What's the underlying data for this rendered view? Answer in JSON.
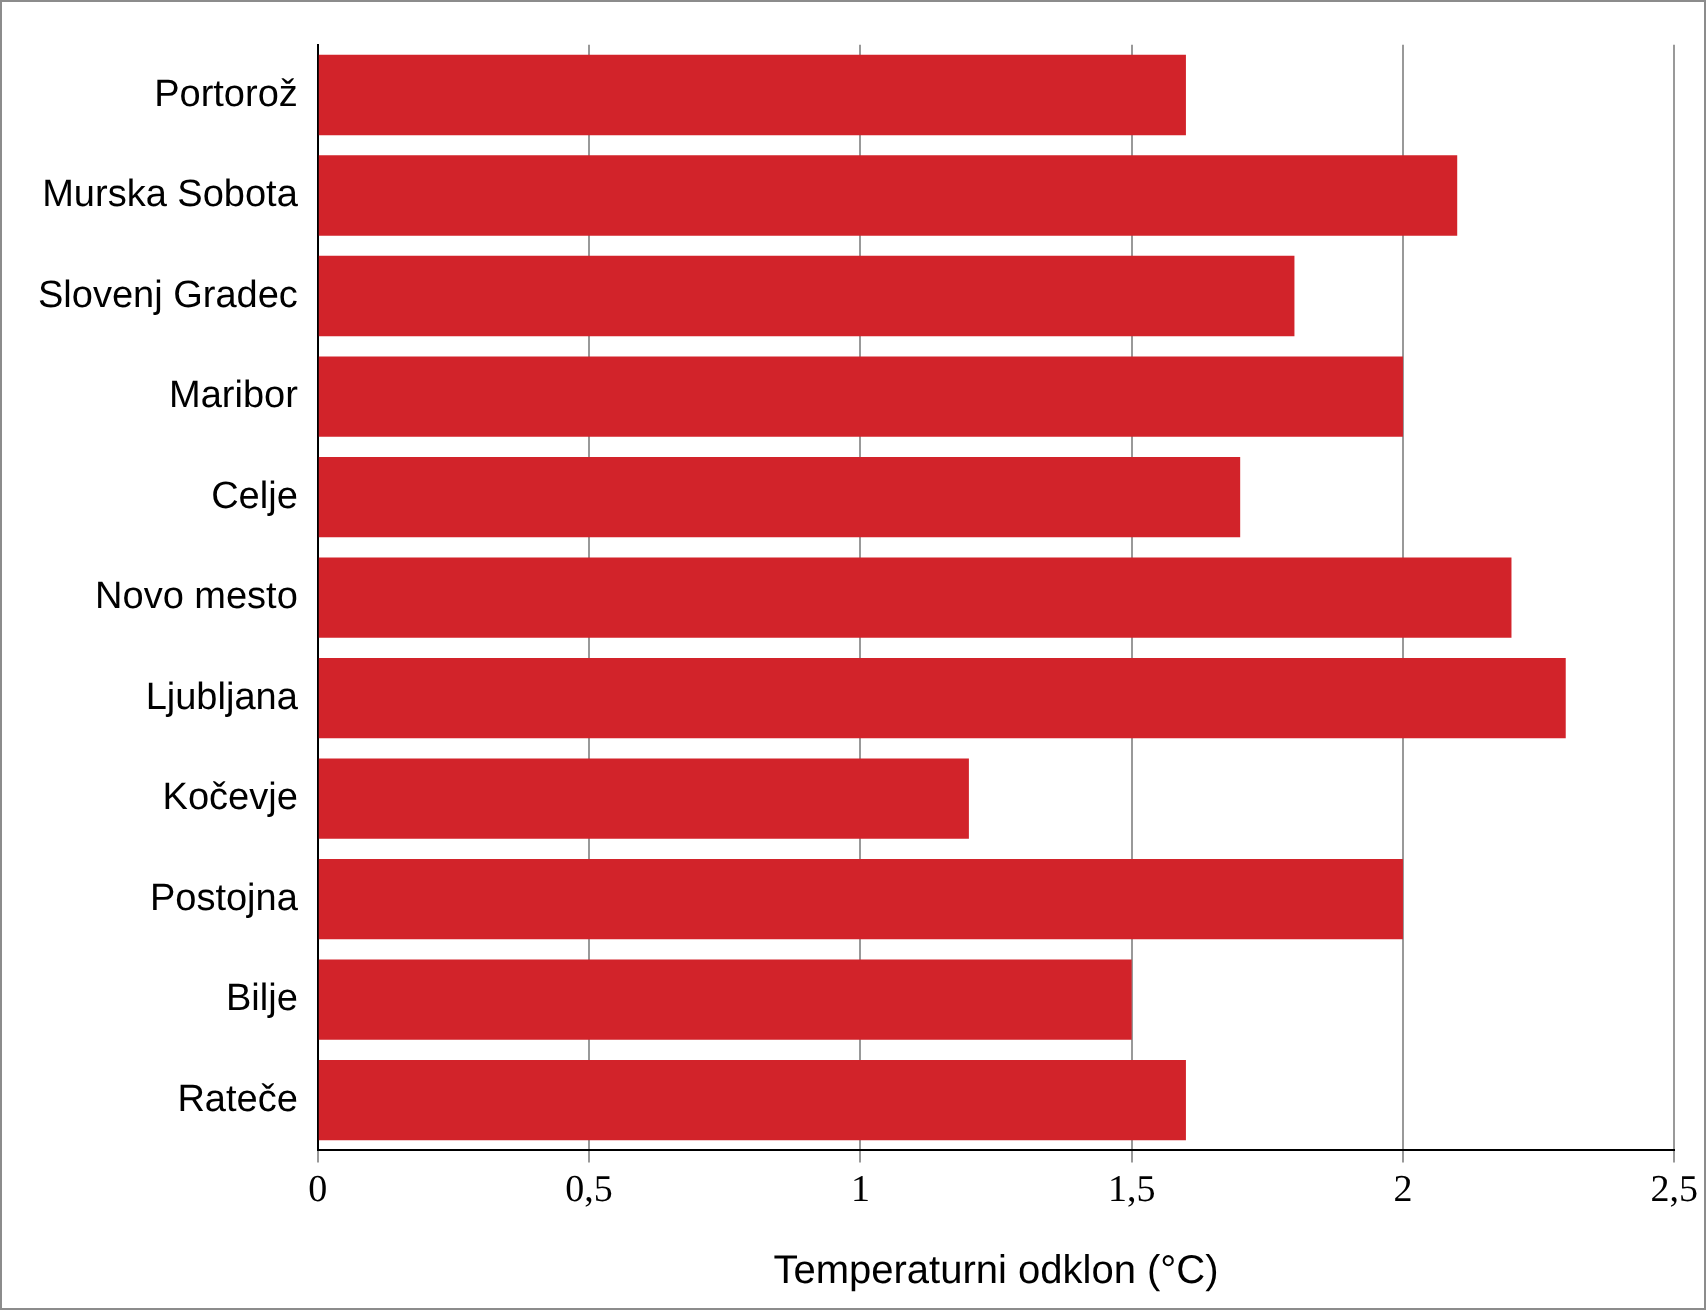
{
  "chart_data": {
    "type": "bar",
    "orientation": "horizontal",
    "xlabel": "Temperaturni odklon (°C)",
    "categories": [
      "Portorož",
      "Murska Sobota",
      "Slovenj Gradec",
      "Maribor",
      "Celje",
      "Novo mesto",
      "Ljubljana",
      "Kočevje",
      "Postojna",
      "Bilje",
      "Rateče"
    ],
    "values": [
      1.6,
      2.1,
      1.8,
      2.0,
      1.7,
      2.2,
      2.3,
      1.2,
      2.0,
      1.5,
      1.6
    ],
    "color": "#d2232a",
    "xlim": [
      0,
      2.5
    ],
    "xticks": [
      0,
      {
        "value": 0.5,
        "label": "0,5"
      },
      1,
      {
        "value": 1.5,
        "label": "1,5"
      },
      2,
      {
        "value": 2.5,
        "label": "2,5"
      }
    ],
    "grid": "x"
  }
}
